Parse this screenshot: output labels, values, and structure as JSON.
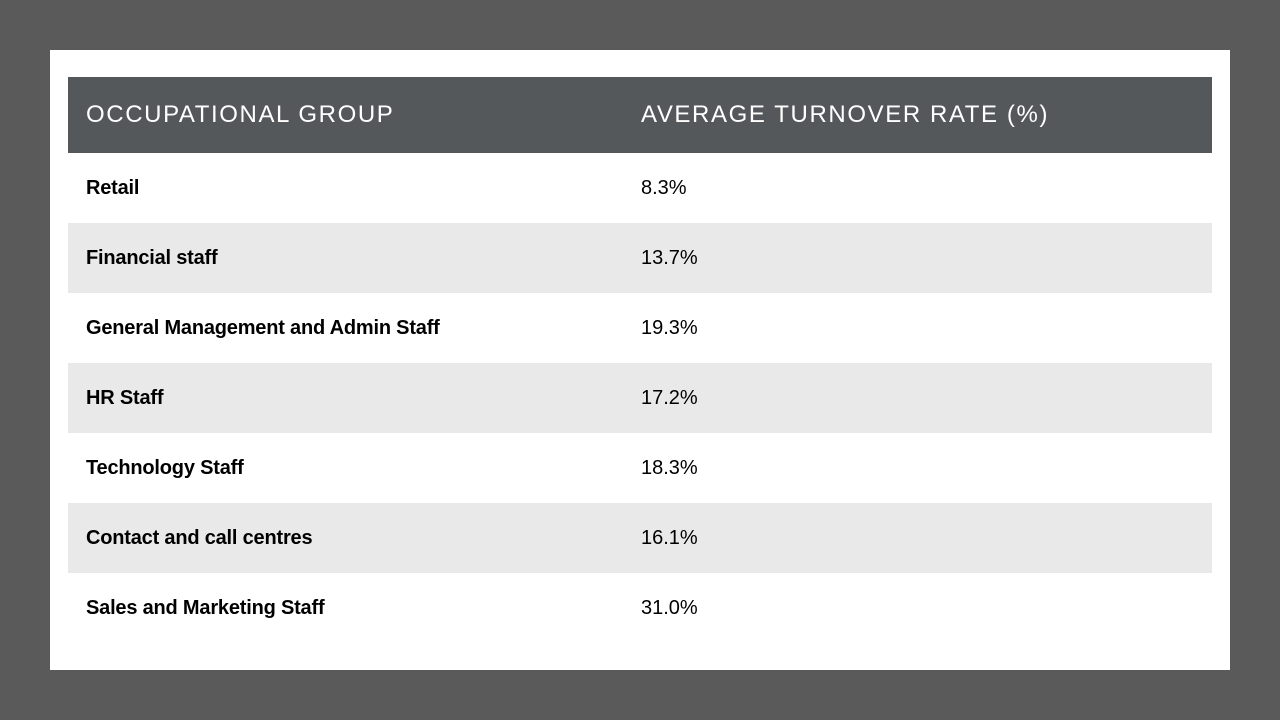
{
  "chart_data": {
    "type": "table",
    "columns": [
      "OCCUPATIONAL GROUP",
      "AVERAGE TURNOVER RATE (%)"
    ],
    "rows": [
      {
        "group": "Retail",
        "rate": "8.3%",
        "value": 8.3
      },
      {
        "group": "Financial staff",
        "rate": "13.7%",
        "value": 13.7
      },
      {
        "group": "General Management and Admin Staff",
        "rate": "19.3%",
        "value": 19.3
      },
      {
        "group": "HR Staff",
        "rate": "17.2%",
        "value": 17.2
      },
      {
        "group": "Technology Staff",
        "rate": "18.3%",
        "value": 18.3
      },
      {
        "group": "Contact and call centres",
        "rate": "16.1%",
        "value": 16.1
      },
      {
        "group": "Sales and Marketing Staff",
        "rate": "31.0%",
        "value": 31.0
      }
    ]
  },
  "colors": {
    "background": "#5a5a5a",
    "card": "#ffffff",
    "header_bg": "#54585a",
    "header_text": "#ffffff",
    "row_alt_bg": "#e9e9e9",
    "row_text": "#000000"
  }
}
